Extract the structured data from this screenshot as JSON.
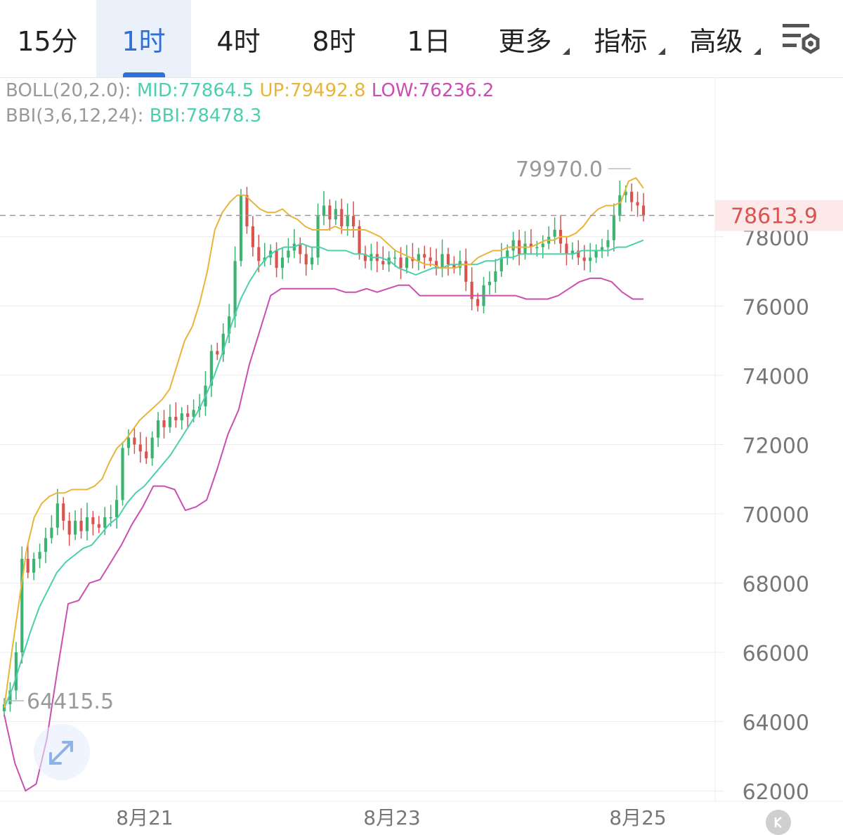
{
  "tabs": [
    {
      "label": "15分",
      "active": false
    },
    {
      "label": "1时",
      "active": true
    },
    {
      "label": "4时",
      "active": false
    },
    {
      "label": "8时",
      "active": false
    },
    {
      "label": "1日",
      "active": false
    },
    {
      "label": "更多",
      "dropdown": true
    },
    {
      "label": "指标",
      "dropdown": true
    },
    {
      "label": "高级",
      "dropdown": true
    }
  ],
  "settings_icon": "chart-settings-icon",
  "indicators": {
    "boll": {
      "name": "BOLL(20,2.0):",
      "mid": "MID:77864.5",
      "up": "UP:79492.8",
      "low": "LOW:76236.2"
    },
    "bbi": {
      "name": "BBI(3,6,12,24):",
      "value": "BBI:78478.3"
    }
  },
  "colors": {
    "up_candle": "#3cb371",
    "down_candle": "#d9534f",
    "boll_mid": "#4ccfae",
    "boll_up": "#e8b53a",
    "boll_low": "#c94fb0",
    "bbi": "#4ccfae",
    "last_price": "#d9534f",
    "grid": "#ececec",
    "axis_text": "#777777"
  },
  "chart_data": {
    "type": "candlestick",
    "period": "1时",
    "y_ticks": [
      78000,
      76000,
      74000,
      72000,
      70000,
      68000,
      66000,
      64000,
      62000
    ],
    "ylim": [
      61700,
      82400
    ],
    "x_labels": [
      "8月21",
      "8月23",
      "8月25"
    ],
    "last_price": "78613.9",
    "high_label": "79970.0",
    "low_label": "64415.5",
    "close": [
      64500,
      64900,
      66000,
      68700,
      68300,
      68700,
      68900,
      69300,
      69600,
      70300,
      69800,
      69400,
      69800,
      69500,
      69900,
      69700,
      69600,
      69900,
      69900,
      70400,
      71900,
      72200,
      72000,
      71800,
      71600,
      72200,
      72700,
      72500,
      72800,
      72700,
      72900,
      72800,
      73000,
      73100,
      73700,
      74700,
      74600,
      75200,
      75700,
      77300,
      79200,
      78300,
      77700,
      77300,
      77400,
      77600,
      77100,
      77400,
      77600,
      77800,
      77500,
      77200,
      77400,
      78600,
      78900,
      78500,
      78800,
      78300,
      78600,
      78300,
      77500,
      77300,
      77500,
      77300,
      77200,
      77400,
      77400,
      77100,
      77400,
      77300,
      77500,
      77400,
      77300,
      77100,
      77500,
      77200,
      77100,
      77300,
      76700,
      76200,
      76000,
      76600,
      76700,
      77000,
      77400,
      77600,
      77900,
      77500,
      77800,
      77700,
      77700,
      77800,
      78000,
      78200,
      77800,
      77500,
      77600,
      77400,
      77300,
      77400,
      77600,
      77700,
      77900,
      78600,
      79200,
      79300,
      79000,
      78900,
      78600
    ],
    "boll_up": [
      64400,
      66000,
      67500,
      69000,
      69900,
      70300,
      70500,
      70600,
      70600,
      70700,
      70700,
      70700,
      70800,
      71000,
      71500,
      71900,
      72100,
      72400,
      72700,
      72900,
      73100,
      73300,
      73600,
      74300,
      75000,
      75400,
      76100,
      77000,
      78200,
      78700,
      79000,
      79200,
      79200,
      79000,
      78800,
      78700,
      78700,
      78800,
      78600,
      78500,
      78300,
      78200,
      78200,
      78200,
      78300,
      78200,
      78200,
      78200,
      78200,
      78100,
      78000,
      77800,
      77600,
      77500,
      77400,
      77300,
      77200,
      77200,
      77100,
      77100,
      77100,
      77200,
      77200,
      77400,
      77500,
      77600,
      77600,
      77700,
      77700,
      77700,
      77700,
      77800,
      77900,
      77900,
      78000,
      78000,
      78100,
      78300,
      78600,
      78800,
      78900,
      78900,
      79000,
      79600,
      79700,
      79400
    ],
    "boll_mid": [
      64400,
      65000,
      65800,
      66600,
      67300,
      67800,
      68300,
      68600,
      68800,
      69000,
      69100,
      69400,
      69700,
      69900,
      70300,
      70600,
      70800,
      71100,
      71400,
      71700,
      72100,
      72500,
      72900,
      73400,
      74000,
      74700,
      75500,
      76200,
      76700,
      77100,
      77400,
      77600,
      77700,
      77700,
      77800,
      77700,
      77700,
      77600,
      77600,
      77600,
      77500,
      77500,
      77400,
      77400,
      77300,
      77100,
      77000,
      76900,
      77000,
      77100,
      77100,
      77200,
      77200,
      77200,
      77200,
      77300,
      77300,
      77400,
      77400,
      77500,
      77500,
      77500,
      77500,
      77500,
      77500,
      77500,
      77600,
      77600,
      77600,
      77600,
      77700,
      77700,
      77800,
      77900
    ],
    "boll_low": [
      64200,
      62800,
      62000,
      62200,
      63500,
      65500,
      67400,
      67500,
      68000,
      68100,
      68600,
      69100,
      69700,
      70200,
      70800,
      70800,
      70700,
      70100,
      70200,
      70400,
      71300,
      72300,
      73000,
      74300,
      75300,
      76300,
      76500,
      76500,
      76500,
      76500,
      76500,
      76500,
      76400,
      76400,
      76500,
      76400,
      76500,
      76600,
      76600,
      76300,
      76300,
      76300,
      76300,
      76300,
      76300,
      76300,
      76300,
      76300,
      76300,
      76200,
      76200,
      76200,
      76300,
      76500,
      76700,
      76800,
      76800,
      76700,
      76400,
      76200,
      76200
    ]
  }
}
